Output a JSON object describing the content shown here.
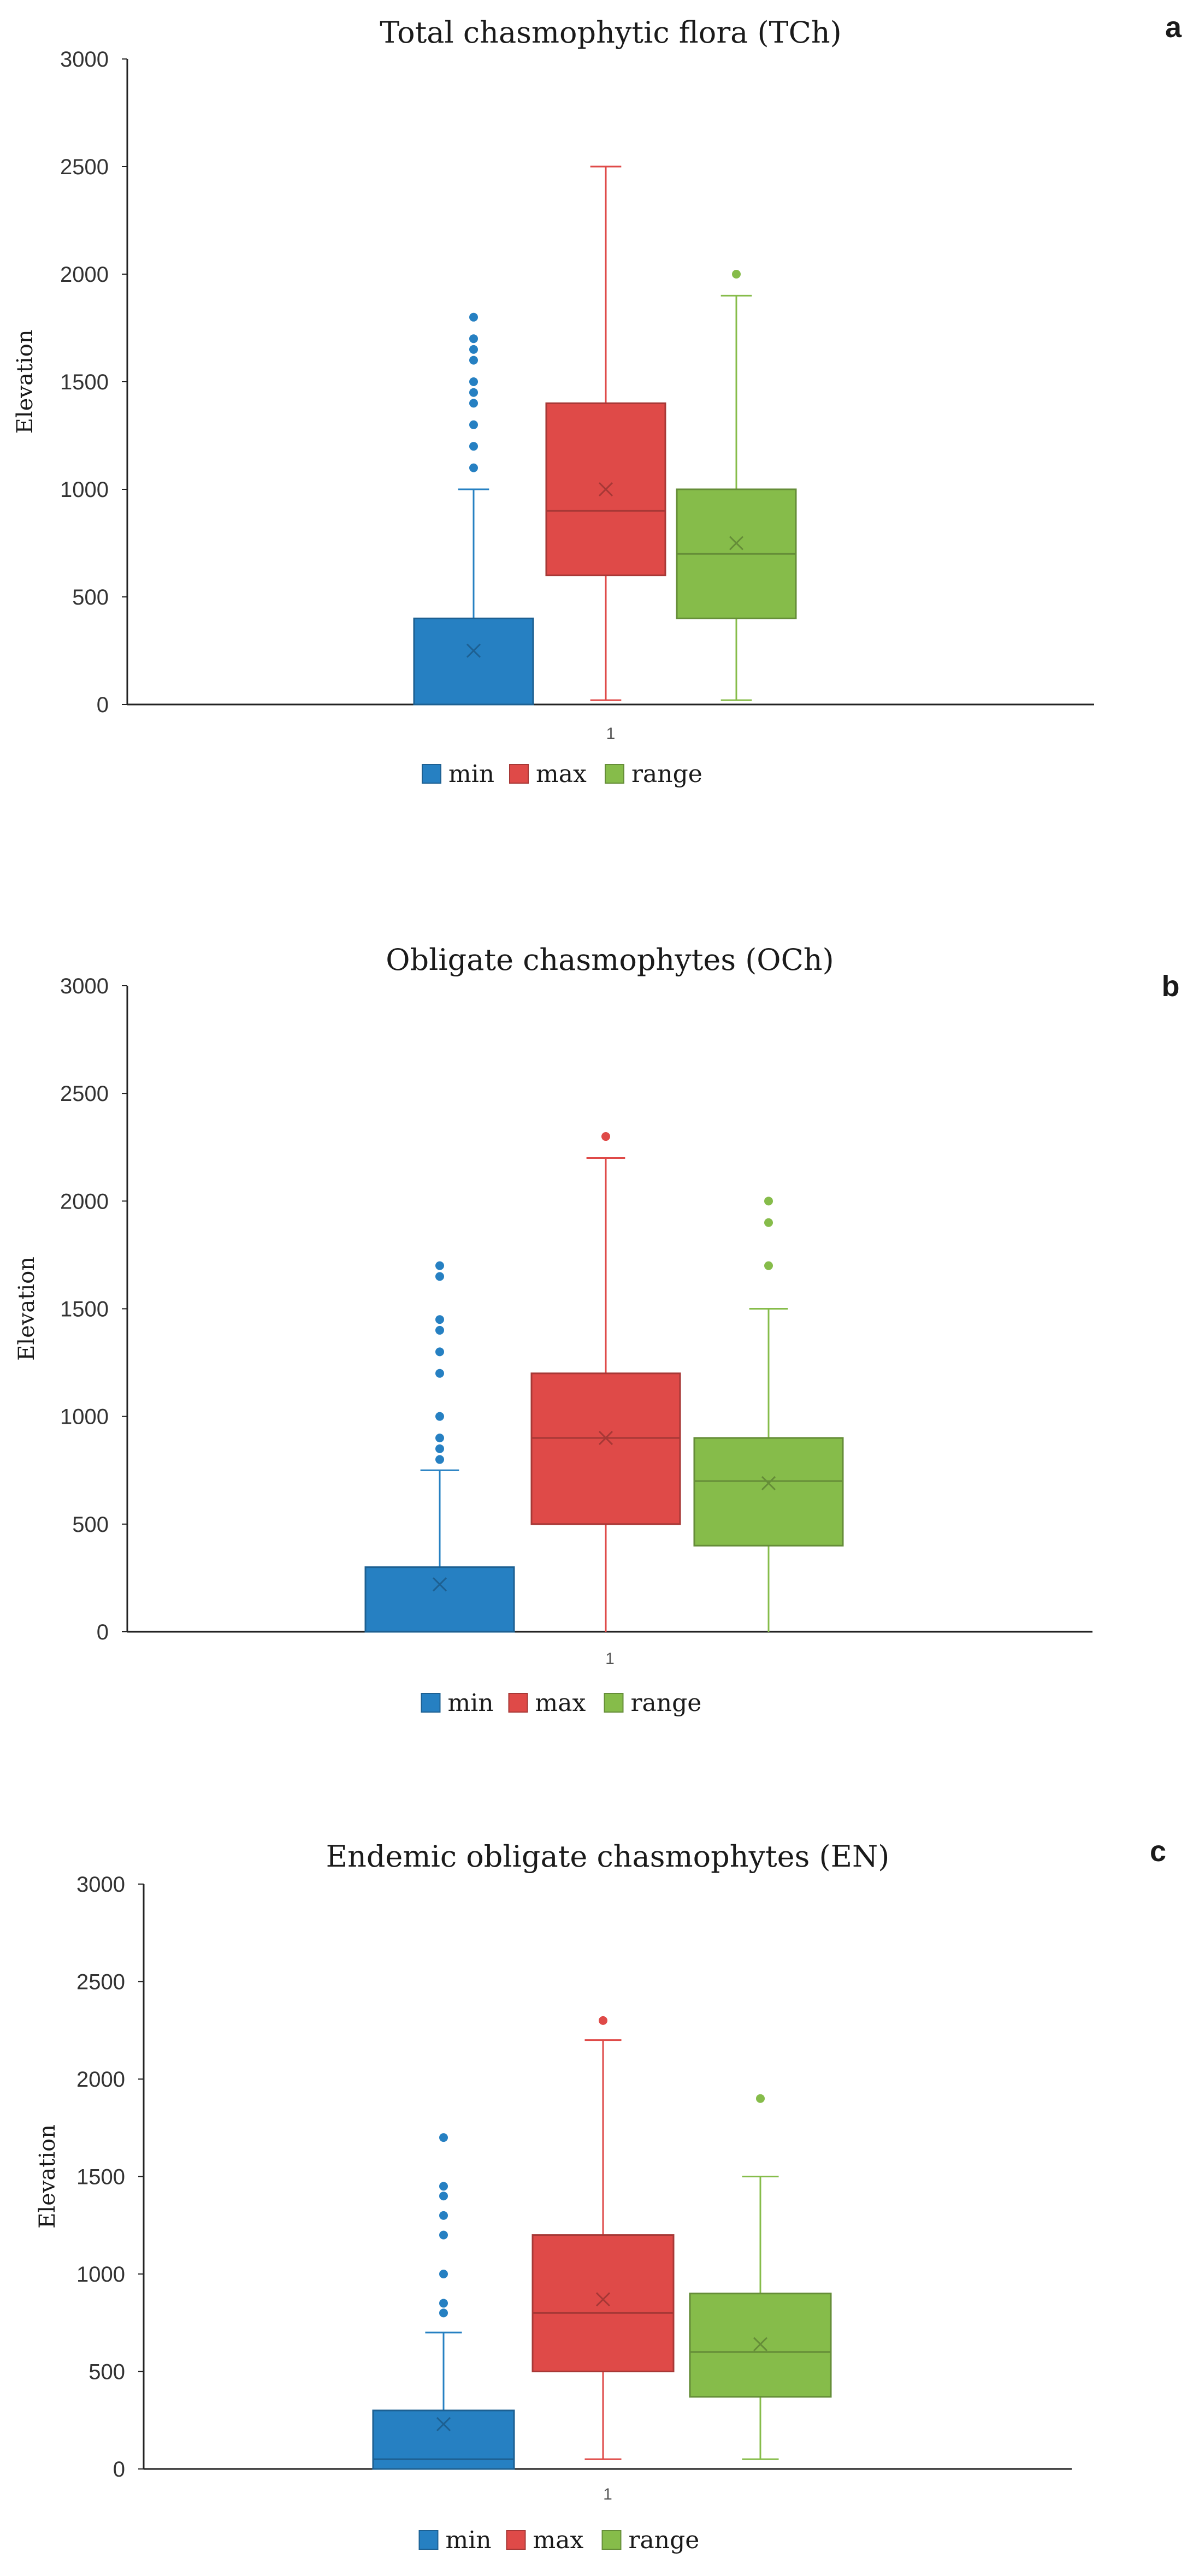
{
  "colors": {
    "min": "#2680c2",
    "max": "#df4a48",
    "range": "#86bc4a",
    "axis": "#222222"
  },
  "chart_data": [
    {
      "type": "box",
      "panel_label": "a",
      "title": "Total chasmophytic flora (TCh)",
      "ylabel": "Elevation",
      "xlabel": "",
      "x_ticks": [
        "1"
      ],
      "ylim": [
        0,
        3000
      ],
      "y_ticks": [
        0,
        500,
        1000,
        1500,
        2000,
        2500,
        3000
      ],
      "legend": [
        "min",
        "max",
        "range"
      ],
      "legend_position": "bottom",
      "series": [
        {
          "name": "min",
          "whisker_low": 0,
          "q1": 0,
          "median": 0,
          "q3": 400,
          "whisker_high": 1000,
          "mean": 250,
          "outliers": [
            1100,
            1200,
            1300,
            1400,
            1450,
            1500,
            1600,
            1650,
            1700,
            1800
          ]
        },
        {
          "name": "max",
          "whisker_low": 20,
          "q1": 600,
          "median": 900,
          "q3": 1400,
          "whisker_high": 2500,
          "mean": 1000,
          "outliers": []
        },
        {
          "name": "range",
          "whisker_low": 20,
          "q1": 400,
          "median": 700,
          "q3": 1000,
          "whisker_high": 1900,
          "mean": 750,
          "outliers": [
            2000
          ]
        }
      ]
    },
    {
      "type": "box",
      "panel_label": "b",
      "title": "Obligate chasmophytes (OCh)",
      "ylabel": "Elevation",
      "xlabel": "",
      "x_ticks": [
        "1"
      ],
      "ylim": [
        0,
        3000
      ],
      "y_ticks": [
        0,
        500,
        1000,
        1500,
        2000,
        2500,
        3000
      ],
      "legend": [
        "min",
        "max",
        "range"
      ],
      "legend_position": "bottom",
      "series": [
        {
          "name": "min",
          "whisker_low": 0,
          "q1": 0,
          "median": 0,
          "q3": 300,
          "whisker_high": 750,
          "mean": 220,
          "outliers": [
            800,
            850,
            900,
            1000,
            1200,
            1300,
            1400,
            1450,
            1650,
            1700
          ]
        },
        {
          "name": "max",
          "whisker_low": 0,
          "q1": 500,
          "median": 900,
          "q3": 1200,
          "whisker_high": 2200,
          "mean": 900,
          "outliers": [
            2300
          ]
        },
        {
          "name": "range",
          "whisker_low": 0,
          "q1": 400,
          "median": 700,
          "q3": 900,
          "whisker_high": 1500,
          "mean": 690,
          "outliers": [
            1700,
            1900,
            2000
          ]
        }
      ]
    },
    {
      "type": "box",
      "panel_label": "c",
      "title": "Endemic obligate chasmophytes (EN)",
      "ylabel": "Elevation",
      "xlabel": "",
      "x_ticks": [
        "1"
      ],
      "ylim": [
        0,
        3000
      ],
      "y_ticks": [
        0,
        500,
        1000,
        1500,
        2000,
        2500,
        3000
      ],
      "legend": [
        "min",
        "max",
        "range"
      ],
      "legend_position": "bottom",
      "series": [
        {
          "name": "min",
          "whisker_low": 0,
          "q1": 0,
          "median": 50,
          "q3": 300,
          "whisker_high": 700,
          "mean": 230,
          "outliers": [
            800,
            850,
            1000,
            1200,
            1300,
            1400,
            1450,
            1700
          ]
        },
        {
          "name": "max",
          "whisker_low": 50,
          "q1": 500,
          "median": 800,
          "q3": 1200,
          "whisker_high": 2200,
          "mean": 870,
          "outliers": [
            2300
          ]
        },
        {
          "name": "range",
          "whisker_low": 50,
          "q1": 370,
          "median": 600,
          "q3": 900,
          "whisker_high": 1500,
          "mean": 640,
          "outliers": [
            1900
          ]
        }
      ]
    }
  ]
}
